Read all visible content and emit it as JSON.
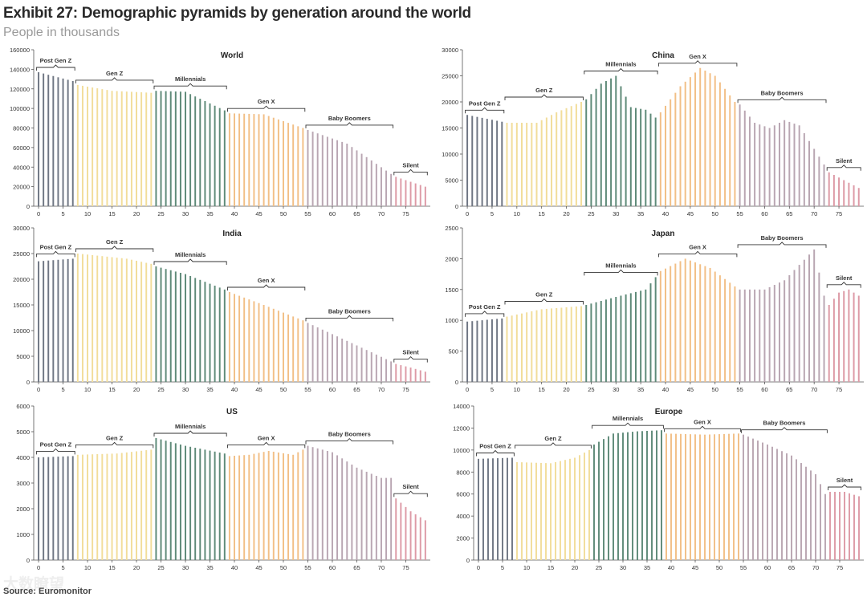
{
  "title": "Exhibit 27: Demographic pyramids by generation around the world",
  "subtitle": "People in thousands",
  "source": "Source: Euromonitor",
  "watermark": "大数瞭望",
  "generation_colors": {
    "Post Gen Z": "#6f7683",
    "Gen Z": "#f2dd9a",
    "Millennials": "#5e8a78",
    "Gen X": "#f2bf86",
    "Baby Boomers": "#b9a6b2",
    "Silent": "#dd9aa6"
  },
  "chart_data": [
    {
      "type": "bar",
      "title": "World",
      "ylim": [
        0,
        160000
      ],
      "yticks": [
        0,
        20000,
        40000,
        60000,
        80000,
        100000,
        120000,
        140000,
        160000
      ],
      "xticks": [
        0,
        5,
        10,
        15,
        20,
        25,
        30,
        35,
        40,
        45,
        50,
        55,
        60,
        65,
        70,
        75
      ],
      "generations": [
        {
          "label": "Post Gen Z",
          "from": 0,
          "to": 7
        },
        {
          "label": "Gen Z",
          "from": 8,
          "to": 23
        },
        {
          "label": "Millennials",
          "from": 24,
          "to": 38
        },
        {
          "label": "Gen X",
          "from": 39,
          "to": 54
        },
        {
          "label": "Baby Boomers",
          "from": 55,
          "to": 72
        },
        {
          "label": "Silent",
          "from": 73,
          "to": 79
        }
      ],
      "keypoints": [
        [
          0,
          137000
        ],
        [
          7,
          128000
        ],
        [
          8,
          124000
        ],
        [
          15,
          118000
        ],
        [
          23,
          116000
        ],
        [
          24,
          118000
        ],
        [
          30,
          117000
        ],
        [
          38,
          98000
        ],
        [
          39,
          95000
        ],
        [
          46,
          94000
        ],
        [
          54,
          80000
        ],
        [
          55,
          78000
        ],
        [
          63,
          64000
        ],
        [
          72,
          33000
        ],
        [
          73,
          30000
        ],
        [
          76,
          25000
        ],
        [
          79,
          20000
        ]
      ],
      "values": []
    },
    {
      "type": "bar",
      "title": "China",
      "ylim": [
        0,
        30000
      ],
      "yticks": [
        0,
        5000,
        10000,
        15000,
        20000,
        25000,
        30000
      ],
      "xticks": [
        0,
        5,
        10,
        15,
        20,
        25,
        30,
        35,
        40,
        45,
        50,
        55,
        60,
        65,
        70,
        75
      ],
      "generations": [
        {
          "label": "Post Gen Z",
          "from": 0,
          "to": 7
        },
        {
          "label": "Gen Z",
          "from": 8,
          "to": 23
        },
        {
          "label": "Millennials",
          "from": 24,
          "to": 38
        },
        {
          "label": "Gen X",
          "from": 39,
          "to": 54
        },
        {
          "label": "Baby Boomers",
          "from": 55,
          "to": 72
        },
        {
          "label": "Silent",
          "from": 73,
          "to": 79
        }
      ],
      "keypoints": [
        [
          0,
          17500
        ],
        [
          7,
          16200
        ],
        [
          8,
          16000
        ],
        [
          14,
          16000
        ],
        [
          18,
          18000
        ],
        [
          23,
          20000
        ],
        [
          24,
          20500
        ],
        [
          27,
          23500
        ],
        [
          30,
          25000
        ],
        [
          33,
          19000
        ],
        [
          36,
          18500
        ],
        [
          38,
          17000
        ],
        [
          39,
          18000
        ],
        [
          43,
          23000
        ],
        [
          47,
          26500
        ],
        [
          50,
          25000
        ],
        [
          54,
          20000
        ],
        [
          55,
          19500
        ],
        [
          58,
          16000
        ],
        [
          61,
          15000
        ],
        [
          64,
          16500
        ],
        [
          67,
          15500
        ],
        [
          70,
          11000
        ],
        [
          72,
          8000
        ],
        [
          73,
          6500
        ],
        [
          76,
          5000
        ],
        [
          79,
          3500
        ]
      ],
      "values": []
    },
    {
      "type": "bar",
      "title": "India",
      "ylim": [
        0,
        30000
      ],
      "yticks": [
        0,
        5000,
        10000,
        15000,
        20000,
        25000,
        30000
      ],
      "xticks": [
        0,
        5,
        10,
        15,
        20,
        25,
        30,
        35,
        40,
        45,
        50,
        55,
        60,
        65,
        70,
        75
      ],
      "generations": [
        {
          "label": "Post Gen Z",
          "from": 0,
          "to": 7
        },
        {
          "label": "Gen Z",
          "from": 8,
          "to": 23
        },
        {
          "label": "Millennials",
          "from": 24,
          "to": 38
        },
        {
          "label": "Gen X",
          "from": 39,
          "to": 54
        },
        {
          "label": "Baby Boomers",
          "from": 55,
          "to": 72
        },
        {
          "label": "Silent",
          "from": 73,
          "to": 79
        }
      ],
      "keypoints": [
        [
          0,
          23500
        ],
        [
          7,
          24000
        ],
        [
          8,
          25000
        ],
        [
          13,
          24500
        ],
        [
          18,
          24000
        ],
        [
          23,
          23000
        ],
        [
          24,
          22500
        ],
        [
          30,
          21000
        ],
        [
          38,
          18000
        ],
        [
          39,
          17500
        ],
        [
          46,
          15000
        ],
        [
          54,
          12000
        ],
        [
          55,
          11500
        ],
        [
          63,
          8000
        ],
        [
          72,
          4000
        ],
        [
          73,
          3500
        ],
        [
          76,
          2800
        ],
        [
          79,
          2000
        ]
      ],
      "values": []
    },
    {
      "type": "bar",
      "title": "Japan",
      "ylim": [
        0,
        2500
      ],
      "yticks": [
        0,
        500,
        1000,
        1500,
        2000,
        2500
      ],
      "xticks": [
        0,
        5,
        10,
        15,
        20,
        25,
        30,
        35,
        40,
        45,
        50,
        55,
        60,
        65,
        70,
        75
      ],
      "generations": [
        {
          "label": "Post Gen Z",
          "from": 0,
          "to": 7
        },
        {
          "label": "Gen Z",
          "from": 8,
          "to": 23
        },
        {
          "label": "Millennials",
          "from": 24,
          "to": 38
        },
        {
          "label": "Gen X",
          "from": 39,
          "to": 54
        },
        {
          "label": "Baby Boomers",
          "from": 55,
          "to": 72
        },
        {
          "label": "Silent",
          "from": 73,
          "to": 79
        }
      ],
      "keypoints": [
        [
          0,
          980
        ],
        [
          7,
          1030
        ],
        [
          8,
          1060
        ],
        [
          15,
          1180
        ],
        [
          23,
          1230
        ],
        [
          24,
          1250
        ],
        [
          30,
          1380
        ],
        [
          36,
          1500
        ],
        [
          38,
          1700
        ],
        [
          39,
          1800
        ],
        [
          44,
          2000
        ],
        [
          49,
          1850
        ],
        [
          54,
          1550
        ],
        [
          55,
          1500
        ],
        [
          60,
          1500
        ],
        [
          64,
          1650
        ],
        [
          67,
          1900
        ],
        [
          70,
          2150
        ],
        [
          72,
          1400
        ],
        [
          73,
          1250
        ],
        [
          75,
          1450
        ],
        [
          77,
          1500
        ],
        [
          79,
          1400
        ]
      ],
      "values": []
    },
    {
      "type": "bar",
      "title": "US",
      "ylim": [
        0,
        6000
      ],
      "yticks": [
        0,
        1000,
        2000,
        3000,
        4000,
        5000,
        6000
      ],
      "xticks": [
        0,
        5,
        10,
        15,
        20,
        25,
        30,
        35,
        40,
        45,
        50,
        55,
        60,
        65,
        70,
        75
      ],
      "generations": [
        {
          "label": "Post Gen Z",
          "from": 0,
          "to": 7
        },
        {
          "label": "Gen Z",
          "from": 8,
          "to": 23
        },
        {
          "label": "Millennials",
          "from": 24,
          "to": 38
        },
        {
          "label": "Gen X",
          "from": 39,
          "to": 54
        },
        {
          "label": "Baby Boomers",
          "from": 55,
          "to": 72
        },
        {
          "label": "Silent",
          "from": 73,
          "to": 79
        }
      ],
      "keypoints": [
        [
          0,
          4000
        ],
        [
          7,
          4050
        ],
        [
          8,
          4100
        ],
        [
          16,
          4150
        ],
        [
          23,
          4300
        ],
        [
          24,
          4750
        ],
        [
          30,
          4450
        ],
        [
          38,
          4150
        ],
        [
          39,
          4050
        ],
        [
          43,
          4100
        ],
        [
          47,
          4250
        ],
        [
          52,
          4100
        ],
        [
          54,
          4300
        ],
        [
          55,
          4450
        ],
        [
          60,
          4200
        ],
        [
          65,
          3600
        ],
        [
          70,
          3200
        ],
        [
          72,
          3200
        ],
        [
          73,
          2400
        ],
        [
          76,
          1900
        ],
        [
          79,
          1550
        ]
      ],
      "values": []
    },
    {
      "type": "bar",
      "title": "Europe",
      "ylim": [
        0,
        14000
      ],
      "yticks": [
        0,
        2000,
        4000,
        6000,
        8000,
        10000,
        12000,
        14000
      ],
      "xticks": [
        0,
        5,
        10,
        15,
        20,
        25,
        30,
        35,
        40,
        45,
        50,
        55,
        60,
        65,
        70,
        75
      ],
      "generations": [
        {
          "label": "Post Gen Z",
          "from": 0,
          "to": 7
        },
        {
          "label": "Gen Z",
          "from": 8,
          "to": 23
        },
        {
          "label": "Millennials",
          "from": 24,
          "to": 38
        },
        {
          "label": "Gen X",
          "from": 39,
          "to": 54
        },
        {
          "label": "Baby Boomers",
          "from": 55,
          "to": 72
        },
        {
          "label": "Silent",
          "from": 73,
          "to": 79
        }
      ],
      "keypoints": [
        [
          0,
          9200
        ],
        [
          7,
          9300
        ],
        [
          8,
          8900
        ],
        [
          15,
          8800
        ],
        [
          20,
          9300
        ],
        [
          23,
          10000
        ],
        [
          24,
          10500
        ],
        [
          28,
          11500
        ],
        [
          33,
          11700
        ],
        [
          38,
          11800
        ],
        [
          39,
          11500
        ],
        [
          47,
          11400
        ],
        [
          54,
          11500
        ],
        [
          55,
          11400
        ],
        [
          60,
          10500
        ],
        [
          65,
          9500
        ],
        [
          70,
          7800
        ],
        [
          72,
          6000
        ],
        [
          73,
          6200
        ],
        [
          76,
          6200
        ],
        [
          79,
          5800
        ]
      ],
      "values": []
    }
  ]
}
